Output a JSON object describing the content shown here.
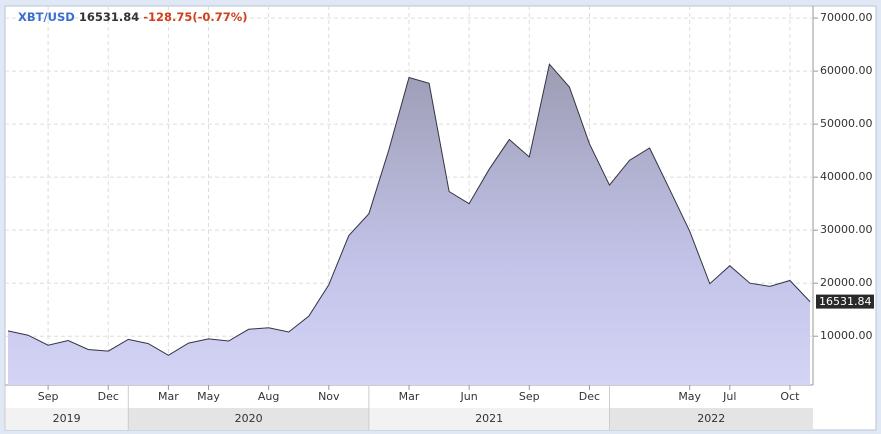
{
  "chart_data": {
    "type": "area",
    "header": {
      "symbol": "XBT/USD",
      "price": "16531.84",
      "change": "-128.75(-0.77%)"
    },
    "x": [
      "2019-07",
      "2019-08",
      "2019-09",
      "2019-10",
      "2019-11",
      "2019-12",
      "2020-01",
      "2020-02",
      "2020-03",
      "2020-04",
      "2020-05",
      "2020-06",
      "2020-07",
      "2020-08",
      "2020-09",
      "2020-10",
      "2020-11",
      "2020-12",
      "2021-01",
      "2021-02",
      "2021-03",
      "2021-04",
      "2021-05",
      "2021-06",
      "2021-07",
      "2021-08",
      "2021-09",
      "2021-10",
      "2021-11",
      "2021-12",
      "2022-01",
      "2022-02",
      "2022-03",
      "2022-04",
      "2022-05",
      "2022-06",
      "2022-07",
      "2022-08",
      "2022-09",
      "2022-10",
      "2022-11"
    ],
    "series": [
      {
        "name": "XBT/USD",
        "color": "#333344",
        "values": [
          11000,
          10200,
          8300,
          9200,
          7500,
          7200,
          9400,
          8600,
          6400,
          8700,
          9500,
          9100,
          11300,
          11600,
          10800,
          13800,
          19700,
          29000,
          33100,
          45200,
          58800,
          57700,
          37300,
          35000,
          41500,
          47100,
          43800,
          61300,
          57000,
          46300,
          38500,
          43200,
          45500,
          37700,
          29800,
          19900,
          23300,
          20000,
          19400,
          20500,
          16531.84
        ]
      }
    ],
    "xlim": [
      "2019-07",
      "2022-11"
    ],
    "xticks": [
      {
        "value": "2019-09",
        "label": "Sep"
      },
      {
        "value": "2019-12",
        "label": "Dec"
      },
      {
        "value": "2020-03",
        "label": "Mar"
      },
      {
        "value": "2020-05",
        "label": "May"
      },
      {
        "value": "2020-08",
        "label": "Aug"
      },
      {
        "value": "2020-11",
        "label": "Nov"
      },
      {
        "value": "2021-03",
        "label": "Mar"
      },
      {
        "value": "2021-06",
        "label": "Jun"
      },
      {
        "value": "2021-09",
        "label": "Sep"
      },
      {
        "value": "2021-12",
        "label": "Dec"
      },
      {
        "value": "2022-05",
        "label": "May"
      },
      {
        "value": "2022-07",
        "label": "Jul"
      },
      {
        "value": "2022-10",
        "label": "Oct"
      }
    ],
    "years": [
      "2019",
      "2020",
      "2021",
      "2022"
    ],
    "ylim": [
      800,
      71900
    ],
    "yticks": [
      {
        "value": 10000,
        "label": "10000.00"
      },
      {
        "value": 20000,
        "label": "20000.00"
      },
      {
        "value": 30000,
        "label": "30000.00"
      },
      {
        "value": 40000,
        "label": "40000.00"
      },
      {
        "value": 50000,
        "label": "50000.00"
      },
      {
        "value": 60000,
        "label": "60000.00"
      },
      {
        "value": 70000,
        "label": "70000.00"
      }
    ],
    "grid": true
  }
}
